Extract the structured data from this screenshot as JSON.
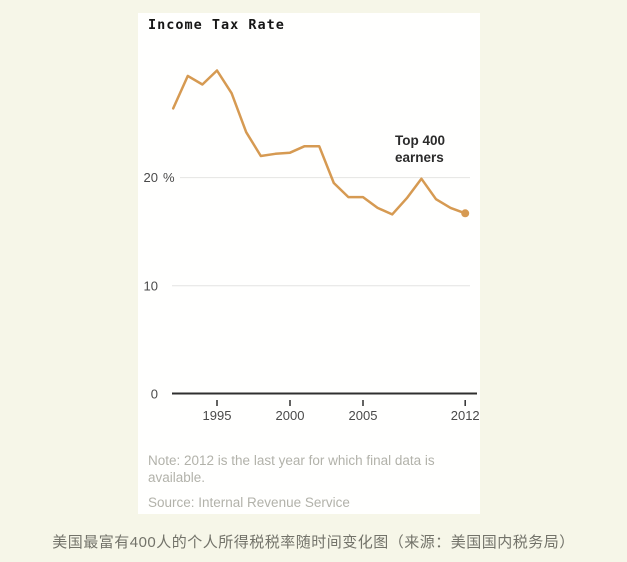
{
  "chart": {
    "title": "Income Tax Rate",
    "annotation": {
      "line1": "Top 400",
      "line2": "earners"
    },
    "note": "Note: 2012 is the last year for which final data is available.",
    "source": "Source: Internal Revenue Service"
  },
  "caption": "美国最富有400人的个人所得税税率随时间变化图（来源：美国国内税务局）",
  "chart_data": {
    "type": "line",
    "title": "Income Tax Rate",
    "series_name": "Top 400 earners",
    "unit": "%",
    "x": [
      1992,
      1993,
      1994,
      1995,
      1996,
      1997,
      1998,
      1999,
      2000,
      2001,
      2002,
      2003,
      2004,
      2005,
      2006,
      2007,
      2008,
      2009,
      2010,
      2011,
      2012
    ],
    "values": [
      26.4,
      29.4,
      28.6,
      29.9,
      27.8,
      24.2,
      22.0,
      22.2,
      22.3,
      22.9,
      22.9,
      19.5,
      18.2,
      18.2,
      17.2,
      16.6,
      18.1,
      19.9,
      18.0,
      17.2,
      16.7
    ],
    "x_ticks": [
      1995,
      2000,
      2005,
      2012
    ],
    "y_ticks": [
      {
        "value": 20,
        "label": "20",
        "suffix": "%"
      },
      {
        "value": 10,
        "label": "10"
      },
      {
        "value": 0,
        "label": "0"
      }
    ],
    "xlim": [
      1992,
      2012
    ],
    "ylim": [
      0,
      35
    ],
    "grid": "horizontal",
    "line_color": "#d69a52",
    "axis_color": "#2f2f2f",
    "grid_color": "#e4e4e2",
    "end_dot": true,
    "annotation": "Top 400 earners",
    "note": "Note: 2012 is the last year for which final data is available.",
    "source": "Source: Internal Revenue Service"
  }
}
